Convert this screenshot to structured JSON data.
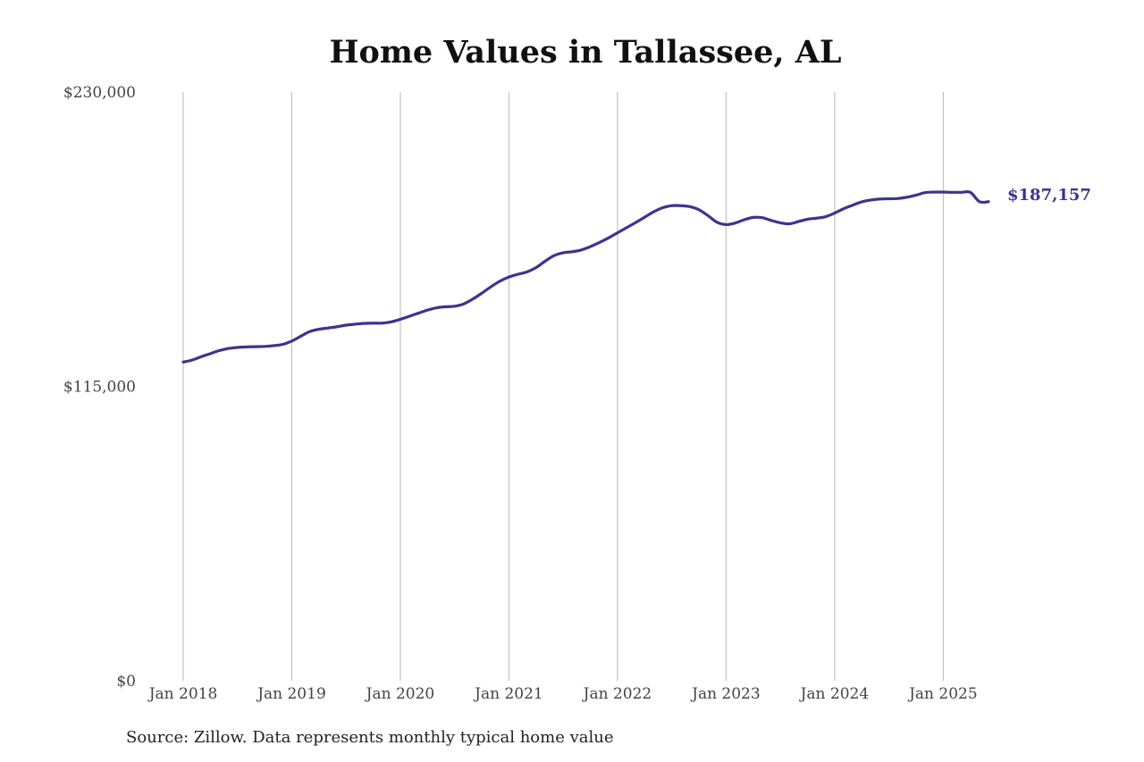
{
  "chart_data": {
    "type": "line",
    "title": "Home Values in Tallassee, AL",
    "xlabel": "",
    "ylabel": "",
    "ylim": [
      0,
      230000
    ],
    "xlim": [
      "2018-01",
      "2025-06"
    ],
    "y_ticks": [
      "$0",
      "$115,000",
      "$230,000"
    ],
    "y_tick_values": [
      0,
      115000,
      230000
    ],
    "x_ticks": [
      "Jan 2018",
      "Jan 2019",
      "Jan 2020",
      "Jan 2021",
      "Jan 2022",
      "Jan 2023",
      "Jan 2024",
      "Jan 2025"
    ],
    "x_tick_values": [
      "2018-01",
      "2019-01",
      "2020-01",
      "2021-01",
      "2022-01",
      "2023-01",
      "2024-01",
      "2025-01"
    ],
    "grid": {
      "vertical": true,
      "horizontal": false
    },
    "line_color": "#3b3491",
    "end_label": "$187,157",
    "series": [
      {
        "x": [
          "2018-01",
          "2018-02",
          "2018-03",
          "2018-04",
          "2018-05",
          "2018-06",
          "2018-07",
          "2018-08",
          "2018-09",
          "2018-10",
          "2018-11",
          "2018-12",
          "2019-01",
          "2019-02",
          "2019-03",
          "2019-04",
          "2019-05",
          "2019-06",
          "2019-07",
          "2019-08",
          "2019-09",
          "2019-10",
          "2019-11",
          "2019-12",
          "2020-01",
          "2020-02",
          "2020-03",
          "2020-04",
          "2020-05",
          "2020-06",
          "2020-07",
          "2020-08",
          "2020-09",
          "2020-10",
          "2020-11",
          "2020-12",
          "2021-01",
          "2021-02",
          "2021-03",
          "2021-04",
          "2021-05",
          "2021-06",
          "2021-07",
          "2021-08",
          "2021-09",
          "2021-10",
          "2021-11",
          "2021-12",
          "2022-01",
          "2022-02",
          "2022-03",
          "2022-04",
          "2022-05",
          "2022-06",
          "2022-07",
          "2022-08",
          "2022-09",
          "2022-10",
          "2022-11",
          "2022-12",
          "2023-01",
          "2023-02",
          "2023-03",
          "2023-04",
          "2023-05",
          "2023-06",
          "2023-07",
          "2023-08",
          "2023-09",
          "2023-10",
          "2023-11",
          "2023-12",
          "2024-01",
          "2024-02",
          "2024-03",
          "2024-04",
          "2024-05",
          "2024-06",
          "2024-07",
          "2024-08",
          "2024-09",
          "2024-10",
          "2024-11",
          "2024-12",
          "2025-01",
          "2025-02",
          "2025-03",
          "2025-04",
          "2025-05",
          "2025-06"
        ],
        "values": [
          124500,
          125300,
          126600,
          127800,
          129000,
          129800,
          130200,
          130400,
          130500,
          130600,
          130900,
          131400,
          132700,
          134600,
          136400,
          137300,
          137800,
          138300,
          138900,
          139300,
          139600,
          139700,
          139700,
          140200,
          141200,
          142400,
          143600,
          144800,
          145700,
          146100,
          146300,
          147200,
          149100,
          151400,
          153900,
          156100,
          157700,
          158800,
          159700,
          161400,
          163900,
          166100,
          167200,
          167600,
          168300,
          169600,
          171200,
          173000,
          175000,
          177000,
          179000,
          181100,
          183200,
          184800,
          185600,
          185600,
          185200,
          184000,
          181700,
          179100,
          178200,
          178800,
          180100,
          181000,
          180900,
          179800,
          178900,
          178500,
          179400,
          180300,
          180700,
          181300,
          182700,
          184400,
          185800,
          187100,
          187800,
          188200,
          188300,
          188400,
          188900,
          189700,
          190700,
          190900,
          190900,
          190800,
          190800,
          190800,
          187157,
          187157
        ]
      }
    ]
  },
  "source": "Source: Zillow. Data represents monthly typical home value"
}
